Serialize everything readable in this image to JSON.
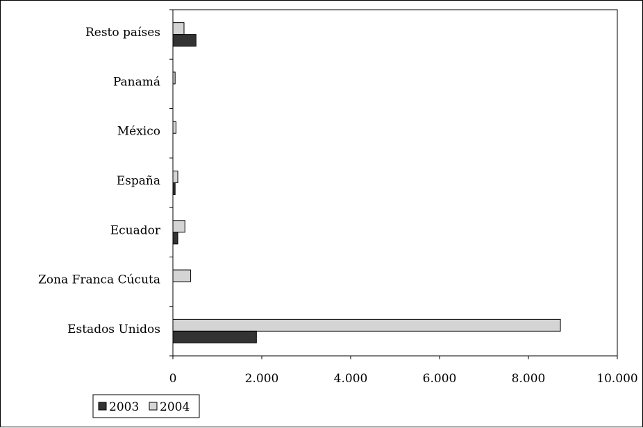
{
  "chart_data": {
    "type": "bar",
    "orientation": "horizontal",
    "categories": [
      "Estados Unidos",
      "Zona Franca Cúcuta",
      "Ecuador",
      "España",
      "México",
      "Panamá",
      "Resto países"
    ],
    "series": [
      {
        "name": "2003",
        "values": [
          1880,
          0,
          110,
          50,
          0,
          0,
          520
        ],
        "color": "#333333"
      },
      {
        "name": "2004",
        "values": [
          8720,
          400,
          270,
          110,
          70,
          50,
          250
        ],
        "color": "#d4d4d4"
      }
    ],
    "xlim": [
      0,
      10000
    ],
    "xticks": [
      0,
      2000,
      4000,
      6000,
      8000,
      10000
    ],
    "xtick_labels": [
      "0",
      "2.000",
      "4.000",
      "6.000",
      "8.000",
      "10.000"
    ],
    "grid": false,
    "legend_position": "bottom-left"
  }
}
